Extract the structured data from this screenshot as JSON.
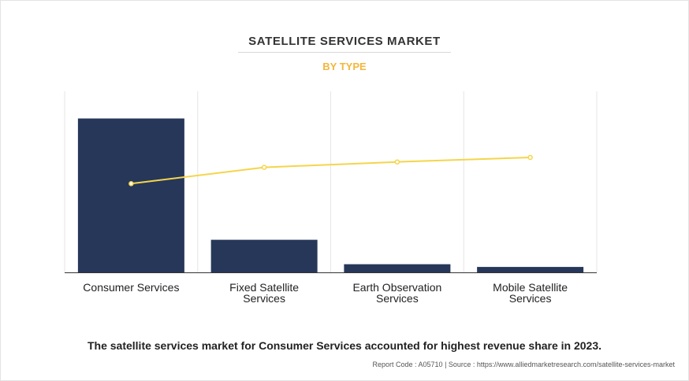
{
  "header": {
    "title": "SATELLITE SERVICES MARKET",
    "subtitle": "BY TYPE"
  },
  "footer": {
    "note": "The satellite services market for Consumer Services accounted for highest revenue share in 2023.",
    "source": "Report Code : A05710  |  Source : https://www.alliedmarketresearch.com/satellite-services-market"
  },
  "colors": {
    "bar": "#26375a",
    "line": "#f5d54a",
    "subtitle": "#f3b73a"
  },
  "chart_data": {
    "type": "bar",
    "categories": [
      [
        "Consumer Services"
      ],
      [
        "Fixed Satellite",
        "Services"
      ],
      [
        "Earth Observation",
        "Services"
      ],
      [
        "Mobile Satellite",
        "Services"
      ]
    ],
    "series": [
      {
        "values": [
          85,
          18,
          4.5,
          3
        ],
        "type": "bar"
      },
      {
        "values": [
          49,
          58,
          61,
          63.5
        ],
        "type": "line"
      }
    ],
    "ylim": [
      0,
      100
    ],
    "grid": "vertical",
    "legend": "none"
  }
}
